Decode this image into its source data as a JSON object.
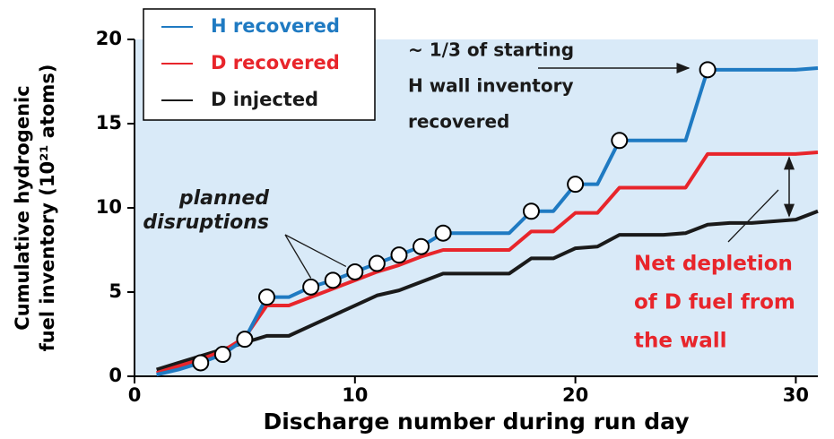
{
  "chart_data": {
    "type": "line",
    "xlabel": "Discharge number during run day",
    "ylabel": [
      "Cumulative hydrogenic",
      "fuel inventory (10²¹ atoms)"
    ],
    "xlim": [
      0,
      31
    ],
    "xticks": [
      0,
      10,
      20,
      30
    ],
    "ylim": [
      0,
      20
    ],
    "yticks": [
      0,
      5,
      10,
      15,
      20
    ],
    "legend": "upper left",
    "background": "#d9eaf8",
    "x": [
      1,
      2,
      3,
      4,
      5,
      6,
      7,
      8,
      9,
      10,
      11,
      12,
      13,
      14,
      15,
      16,
      17,
      18,
      19,
      20,
      21,
      22,
      23,
      24,
      25,
      26,
      27,
      28,
      29,
      30,
      31
    ],
    "series": [
      {
        "name": "H recovered",
        "color": "#1f7ac2",
        "values": [
          0.1,
          0.4,
          0.8,
          1.3,
          2.2,
          4.7,
          4.7,
          5.3,
          5.7,
          6.2,
          6.7,
          7.2,
          7.7,
          8.5,
          8.5,
          8.5,
          8.5,
          9.8,
          9.8,
          11.4,
          11.4,
          14.0,
          14.0,
          14.0,
          14.0,
          18.2,
          18.2,
          18.2,
          18.2,
          18.2,
          18.3
        ]
      },
      {
        "name": "D recovered",
        "color": "#e8252b",
        "values": [
          0.2,
          0.6,
          1.0,
          1.5,
          2.3,
          4.2,
          4.2,
          4.7,
          5.2,
          5.7,
          6.2,
          6.6,
          7.1,
          7.5,
          7.5,
          7.5,
          7.5,
          8.6,
          8.6,
          9.7,
          9.7,
          11.2,
          11.2,
          11.2,
          11.2,
          13.2,
          13.2,
          13.2,
          13.2,
          13.2,
          13.3
        ]
      },
      {
        "name": "D injected",
        "color": "#1a1a1a",
        "values": [
          0.4,
          0.8,
          1.2,
          1.6,
          2.0,
          2.4,
          2.4,
          3.0,
          3.6,
          4.2,
          4.8,
          5.1,
          5.6,
          6.1,
          6.1,
          6.1,
          6.1,
          7.0,
          7.0,
          7.6,
          7.7,
          8.4,
          8.4,
          8.4,
          8.5,
          9.0,
          9.1,
          9.1,
          9.2,
          9.3,
          9.8
        ]
      }
    ],
    "disruptions": {
      "x": [
        3,
        4,
        5,
        6,
        8,
        9,
        10,
        11,
        12,
        13,
        14,
        18,
        20,
        22,
        26
      ],
      "values": [
        0.8,
        1.3,
        2.2,
        4.7,
        5.3,
        5.7,
        6.2,
        6.7,
        7.2,
        7.7,
        8.5,
        9.8,
        11.4,
        14.0,
        18.2
      ]
    },
    "annotations": [
      {
        "text": [
          "~ 1/3 of starting",
          "H wall inventory",
          "recovered"
        ],
        "color": "#1a1a1a"
      },
      {
        "text": [
          "planned",
          "disruptions"
        ],
        "color": "#1a1a1a"
      },
      {
        "text": [
          "Net depletion",
          "of D fuel from",
          "the wall"
        ],
        "color": "#e8252b"
      }
    ]
  }
}
